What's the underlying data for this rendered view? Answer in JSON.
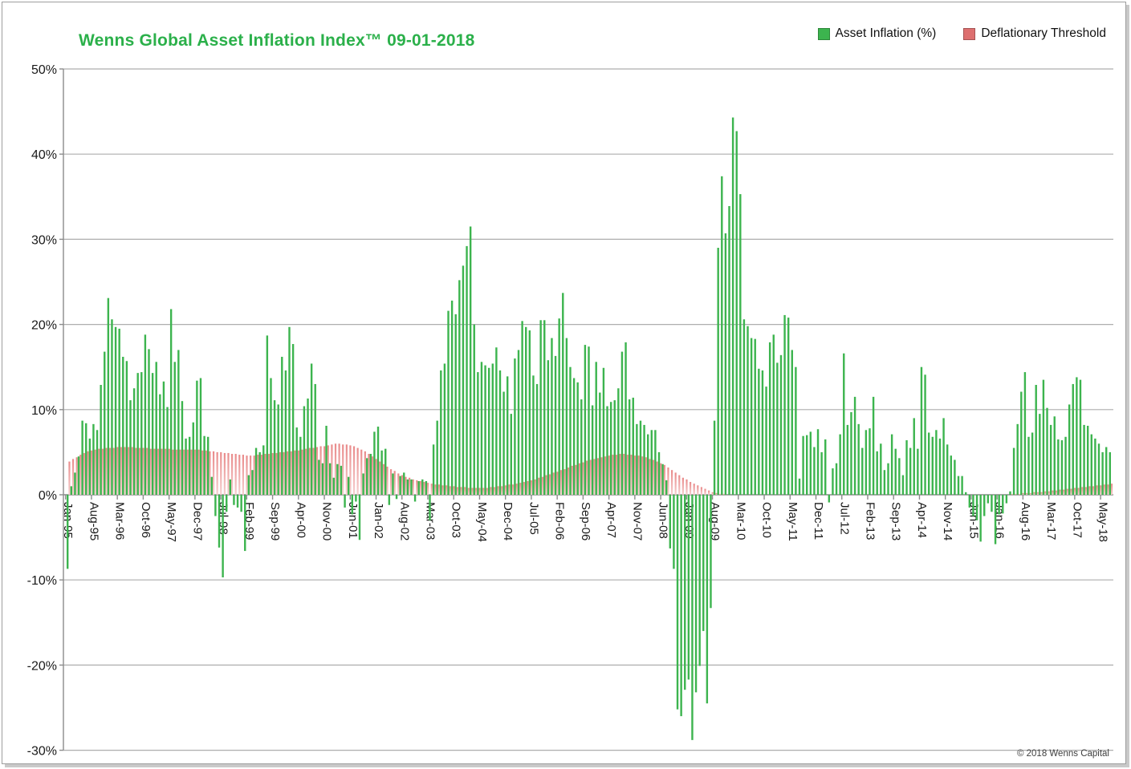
{
  "header": {
    "title": "Wenns Global Asset Inflation Index™  09-01-2018"
  },
  "legend": [
    {
      "label": "Asset Inflation (%)",
      "color": "#3CB44E"
    },
    {
      "label": "Deflationary Threshold",
      "color": "#DD6F6F"
    }
  ],
  "footer": {
    "copyright": "© 2018 Wenns Capital"
  },
  "colors": {
    "title_green": "#2BB04A",
    "bar_green": "#3CB44E",
    "bar_red_top": "#E98B8B",
    "bar_red_bottom": "#F6CFCF",
    "gridline": "#aeaeae",
    "axis": "#8c8c8c"
  },
  "chart_data": {
    "type": "bar",
    "title": "Wenns Global Asset Inflation Index™  09-01-2018",
    "x_start": "Jan-1995",
    "x_end": "Jul-2018",
    "x_interval": "monthly",
    "x_tick_every": 7,
    "x_tick_labels": [
      "Jan-95",
      "Aug-95",
      "Mar-96",
      "Oct-96",
      "May-97",
      "Dec-97",
      "Jul-98",
      "Feb-99",
      "Sep-99",
      "Apr-00",
      "Nov-00",
      "Jun-01",
      "Jan-02",
      "Aug-02",
      "Mar-03",
      "Oct-03",
      "May-04",
      "Dec-04",
      "Jul-05",
      "Feb-06",
      "Sep-06",
      "Apr-07",
      "Nov-07",
      "Jun-08",
      "Jan-09",
      "Aug-09",
      "Mar-10",
      "Oct-10",
      "May-11",
      "Dec-11",
      "Jul-12",
      "Feb-13",
      "Sep-13",
      "Apr-14",
      "Nov-14",
      "Jun-15",
      "Jan-16",
      "Aug-16",
      "Mar-17",
      "Oct-17",
      "May-18"
    ],
    "ylim": [
      -30,
      50
    ],
    "y_tick_labels": [
      "-30%",
      "-20%",
      "-10%",
      "0%",
      "10%",
      "20%",
      "30%",
      "40%",
      "50%"
    ],
    "grid": "horizontal",
    "legend_position": "top-right",
    "series": [
      {
        "name": "Asset Inflation (%)",
        "color": "#3CB44E",
        "values": [
          -8.7,
          1.0,
          2.6,
          4.5,
          8.7,
          8.4,
          6.6,
          8.3,
          7.6,
          12.9,
          16.8,
          23.1,
          20.6,
          19.7,
          19.5,
          16.2,
          15.7,
          11.1,
          12.5,
          14.3,
          14.4,
          18.8,
          17.1,
          14.3,
          15.6,
          11.8,
          13.3,
          10.3,
          21.8,
          15.6,
          17.0,
          11.0,
          6.6,
          6.8,
          8.5,
          13.4,
          13.7,
          6.9,
          6.8,
          2.1,
          -2.5,
          -6.2,
          -9.7,
          -2.0,
          1.8,
          -1.2,
          -1.5,
          -2.0,
          -6.6,
          2.3,
          2.9,
          5.5,
          5.0,
          5.8,
          18.7,
          13.7,
          11.1,
          10.6,
          16.2,
          14.6,
          19.7,
          17.7,
          7.9,
          6.8,
          10.4,
          11.3,
          15.4,
          13.0,
          4.1,
          3.7,
          8.1,
          3.7,
          2.0,
          3.6,
          3.4,
          -1.5,
          2.1,
          -2.3,
          -0.8,
          -5.3,
          2.5,
          4.3,
          4.8,
          7.4,
          8.0,
          5.2,
          5.4,
          -1.2,
          2.5,
          -0.5,
          2.2,
          2.6,
          1.8,
          1.8,
          -0.8,
          1.6,
          1.8,
          1.6,
          -3.0,
          5.9,
          8.7,
          14.6,
          15.4,
          21.6,
          22.8,
          21.2,
          25.2,
          26.9,
          29.2,
          31.5,
          20.0,
          14.4,
          15.6,
          15.2,
          14.9,
          15.4,
          17.3,
          14.6,
          12.1,
          13.9,
          9.5,
          16.0,
          17.0,
          20.4,
          19.7,
          19.3,
          14.0,
          13.0,
          20.5,
          20.5,
          15.8,
          18.4,
          16.3,
          20.7,
          23.7,
          18.4,
          15.0,
          13.7,
          13.2,
          11.2,
          17.6,
          17.4,
          10.5,
          15.6,
          12.0,
          14.9,
          10.4,
          10.9,
          11.1,
          12.5,
          16.8,
          17.9,
          11.2,
          11.4,
          8.3,
          8.7,
          8.2,
          7.1,
          7.6,
          7.6,
          5.0,
          3.6,
          1.7,
          -6.3,
          -8.7,
          -25.2,
          -26.0,
          -22.9,
          -21.7,
          -28.8,
          -23.2,
          -20.1,
          -16.0,
          -24.5,
          -13.3,
          8.7,
          29.0,
          37.4,
          30.7,
          33.9,
          44.3,
          42.7,
          35.3,
          20.6,
          19.8,
          18.4,
          18.3,
          14.8,
          14.6,
          12.7,
          17.9,
          18.8,
          15.5,
          16.4,
          21.1,
          20.8,
          17.0,
          15.0,
          1.9,
          6.9,
          7.0,
          7.4,
          5.6,
          7.7,
          5.0,
          6.5,
          -0.9,
          3.1,
          3.7,
          7.1,
          16.6,
          8.2,
          9.7,
          11.5,
          8.3,
          5.5,
          7.6,
          7.8,
          11.5,
          5.1,
          6.0,
          2.9,
          3.7,
          7.1,
          5.4,
          4.3,
          2.3,
          6.4,
          5.5,
          9.0,
          5.4,
          15.0,
          14.1,
          7.3,
          6.8,
          7.6,
          6.6,
          9.0,
          5.9,
          4.6,
          4.1,
          2.2,
          2.2,
          0.3,
          -1.5,
          -2.5,
          -3.0,
          -5.5,
          -2.5,
          -1.0,
          -2.0,
          -5.8,
          -2.3,
          -2.2,
          -1.0,
          0.4,
          5.5,
          8.3,
          12.1,
          14.4,
          6.8,
          7.3,
          12.9,
          9.5,
          13.5,
          10.2,
          8.2,
          9.2,
          6.5,
          6.4,
          6.8,
          10.6,
          13.0,
          13.8,
          13.5,
          8.2,
          8.1,
          7.1,
          6.6,
          6.0,
          5.0,
          5.6,
          5.0
        ]
      },
      {
        "name": "Deflationary Threshold",
        "color": "#EFA9A9",
        "values": [
          3.9,
          4.2,
          4.4,
          4.7,
          4.9,
          5.1,
          5.2,
          5.3,
          5.4,
          5.4,
          5.5,
          5.5,
          5.5,
          5.6,
          5.6,
          5.6,
          5.6,
          5.6,
          5.5,
          5.5,
          5.5,
          5.5,
          5.4,
          5.4,
          5.4,
          5.4,
          5.4,
          5.4,
          5.3,
          5.3,
          5.3,
          5.3,
          5.3,
          5.3,
          5.3,
          5.3,
          5.2,
          5.2,
          5.1,
          5.1,
          5.0,
          5.0,
          4.9,
          4.9,
          4.8,
          4.8,
          4.7,
          4.7,
          4.6,
          4.6,
          4.6,
          4.7,
          4.7,
          4.8,
          4.8,
          4.9,
          4.9,
          5.0,
          5.0,
          5.1,
          5.1,
          5.2,
          5.2,
          5.3,
          5.4,
          5.5,
          5.5,
          5.6,
          5.7,
          5.7,
          5.8,
          5.9,
          6.0,
          6.0,
          5.9,
          5.9,
          5.8,
          5.7,
          5.5,
          5.3,
          5.1,
          4.8,
          4.5,
          4.2,
          3.9,
          3.6,
          3.3,
          3.0,
          2.8,
          2.5,
          2.3,
          2.1,
          2.0,
          1.8,
          1.7,
          1.6,
          1.5,
          1.4,
          1.3,
          1.2,
          1.2,
          1.1,
          1.1,
          1.0,
          1.0,
          0.9,
          0.9,
          0.9,
          0.8,
          0.8,
          0.8,
          0.8,
          0.8,
          0.8,
          0.9,
          0.9,
          1.0,
          1.0,
          1.1,
          1.2,
          1.2,
          1.3,
          1.4,
          1.5,
          1.6,
          1.7,
          1.8,
          2.0,
          2.1,
          2.3,
          2.4,
          2.6,
          2.7,
          2.9,
          3.0,
          3.2,
          3.4,
          3.5,
          3.7,
          3.8,
          4.0,
          4.1,
          4.2,
          4.3,
          4.4,
          4.5,
          4.6,
          4.7,
          4.7,
          4.8,
          4.8,
          4.7,
          4.7,
          4.6,
          4.6,
          4.5,
          4.4,
          4.2,
          4.1,
          3.9,
          3.7,
          3.5,
          3.2,
          2.9,
          2.6,
          2.3,
          2.0,
          1.8,
          1.5,
          1.3,
          1.1,
          0.9,
          0.7,
          0.5,
          0.3,
          0.2,
          0.1,
          0.1,
          0,
          0,
          0,
          0,
          0,
          0,
          0,
          0,
          0,
          0,
          0,
          0,
          0,
          0,
          0,
          0,
          0,
          0,
          0,
          0,
          0,
          0,
          0,
          0,
          0,
          0,
          0,
          0,
          0,
          0,
          0,
          0,
          0,
          0,
          0,
          0,
          0,
          0,
          0,
          0,
          0,
          0,
          0,
          0,
          0,
          0,
          0,
          0,
          0,
          0,
          0,
          0,
          0,
          0,
          0,
          0,
          0,
          0,
          0,
          0,
          0,
          0,
          0,
          0,
          0,
          0,
          0,
          0,
          0,
          0,
          0,
          0,
          0,
          0,
          0,
          0,
          0,
          0.1,
          0.1,
          0.1,
          0.2,
          0.2,
          0.2,
          0.3,
          0.3,
          0.3,
          0.4,
          0.4,
          0.5,
          0.5,
          0.6,
          0.6,
          0.7,
          0.7,
          0.8,
          0.8,
          0.9,
          0.9,
          1.0,
          1.0,
          1.1,
          1.1,
          1.2,
          1.2,
          1.3
        ]
      }
    ]
  }
}
